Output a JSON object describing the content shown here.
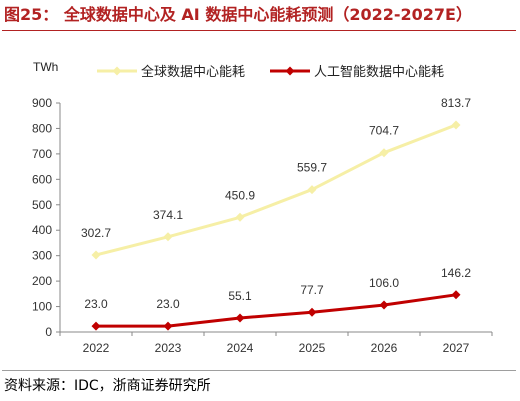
{
  "page": {
    "title": "图25：  全球数据中心及 AI 数据中心能耗预测（2022-2027E）",
    "source": "资料来源：IDC，浙商证券研究所",
    "title_color": "#b22222"
  },
  "chart_data": {
    "type": "line",
    "unit": "TWh",
    "categories": [
      "2022",
      "2023",
      "2024",
      "2025",
      "2026",
      "2027"
    ],
    "ylim": [
      0,
      900
    ],
    "yticks": [
      0,
      100,
      200,
      300,
      400,
      500,
      600,
      700,
      800,
      900
    ],
    "grid": false,
    "legend_position": "top",
    "series": [
      {
        "name": "全球数据中心能耗",
        "values": [
          302.7,
          374.1,
          450.9,
          559.7,
          704.7,
          813.7
        ],
        "labels": [
          "302.7",
          "374.1",
          "450.9",
          "559.7",
          "704.7",
          "813.7"
        ],
        "color": "#f6efa6",
        "marker": "diamond"
      },
      {
        "name": "人工智能数据中心能耗",
        "values": [
          23.0,
          23.0,
          55.1,
          77.7,
          106.0,
          146.2
        ],
        "labels": [
          "23.0",
          "23.0",
          "55.1",
          "77.7",
          "106.0",
          "146.2"
        ],
        "color": "#c00000",
        "marker": "diamond"
      }
    ]
  }
}
